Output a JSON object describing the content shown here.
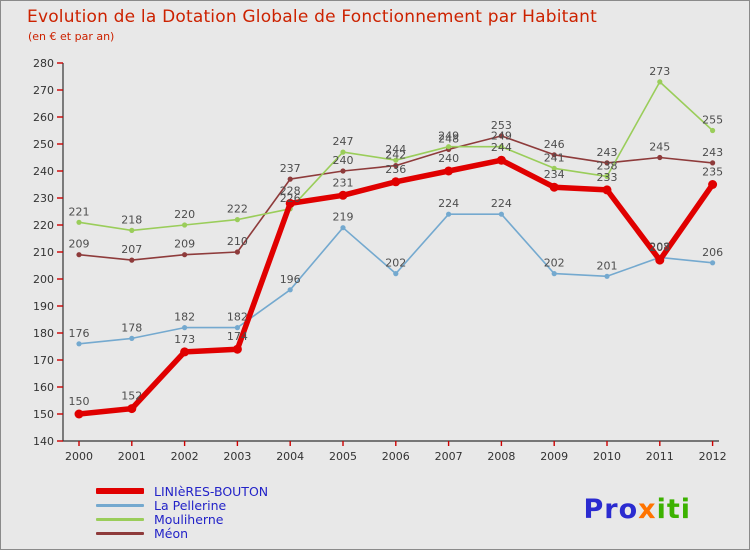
{
  "title": "Evolution de la Dotation Globale de Fonctionnement par Habitant",
  "subtitle": "(en € et par an)",
  "colors": {
    "title": "#cc2200",
    "axis": "#333333",
    "tick_mark": "#cc0000",
    "value_label": "#4d4d4d",
    "legend_text": "#2323c8",
    "background": "#e8e8e8"
  },
  "chart_data": {
    "type": "line",
    "x": [
      2000,
      2001,
      2002,
      2003,
      2004,
      2005,
      2006,
      2007,
      2008,
      2009,
      2010,
      2011,
      2012
    ],
    "series": [
      {
        "name": "LINIèRES-BOUTON",
        "color": "#e00000",
        "thick": true,
        "values": [
          150,
          152,
          173,
          174,
          228,
          231,
          236,
          240,
          244,
          234,
          233,
          207,
          235
        ]
      },
      {
        "name": "La Pellerine",
        "color": "#74a9cf",
        "thick": false,
        "values": [
          176,
          178,
          182,
          182,
          196,
          219,
          202,
          224,
          224,
          202,
          201,
          208,
          206
        ]
      },
      {
        "name": "Mouliherne",
        "color": "#9acd5a",
        "thick": false,
        "values": [
          221,
          218,
          220,
          222,
          226,
          247,
          244,
          249,
          249,
          241,
          238,
          273,
          255
        ]
      },
      {
        "name": "Méon",
        "color": "#8e3b3b",
        "thick": false,
        "values": [
          209,
          207,
          209,
          210,
          237,
          240,
          242,
          248,
          253,
          246,
          243,
          245,
          243
        ]
      }
    ],
    "ylim": [
      140,
      280
    ],
    "ytick_step": 10,
    "grid": false,
    "legend_position": "bottom-left",
    "title": "Evolution de la Dotation Globale de Fonctionnement par Habitant",
    "xlabel": "",
    "ylabel": ""
  },
  "logo": {
    "parts": [
      {
        "text": "Pro",
        "color": "#2b2bd0"
      },
      {
        "text": "x",
        "color": "#ff7300"
      },
      {
        "text": "iti",
        "color": "#3cb200"
      }
    ]
  }
}
